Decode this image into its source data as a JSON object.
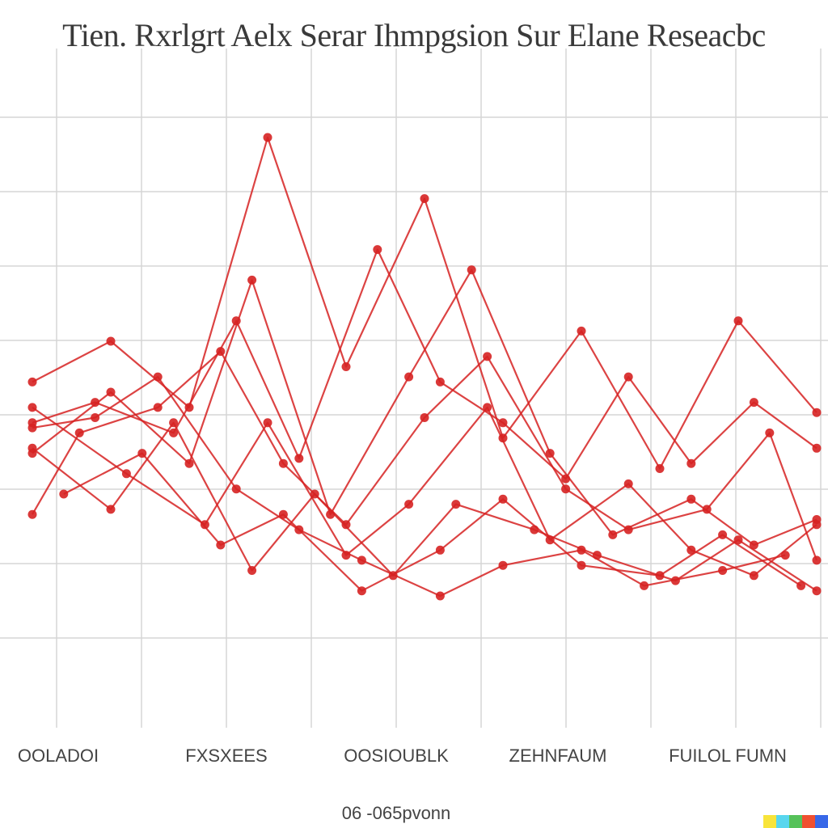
{
  "chart_data": {
    "type": "line",
    "title": "Tien. Rxrlgrt Aelx Serar Ihmpgsion Sur Elane Reseacbc",
    "categories": [
      "OOLADOI",
      "FXSXEES",
      "OOSIOUBLK",
      "ZEHNFAUM",
      "FUILOL FUMN"
    ],
    "xlabel": "06 -065pvonn",
    "ylabel": "",
    "ylim": [
      0,
      100
    ],
    "grid": true,
    "series_color": "#d62222",
    "series": [
      {
        "x": [
          0.0,
          0.5,
          1.0,
          1.5,
          2.0,
          2.5,
          3.0,
          3.5,
          4.0,
          4.5,
          5.0
        ],
        "values": [
          52,
          60,
          47,
          100,
          55,
          88,
          41,
          62,
          35,
          64,
          46
        ]
      },
      {
        "x": [
          0.0,
          0.4,
          0.9,
          1.3,
          1.7,
          2.2,
          2.6,
          3.0,
          3.4,
          3.8,
          4.2,
          4.6,
          5.0
        ],
        "values": [
          44,
          48,
          42,
          64,
          37,
          78,
          52,
          44,
          33,
          53,
          36,
          48,
          39
        ]
      },
      {
        "x": [
          0.0,
          0.5,
          1.0,
          1.4,
          1.9,
          2.4,
          2.8,
          3.3,
          3.7,
          4.2,
          4.6,
          5.0
        ],
        "values": [
          38,
          50,
          36,
          72,
          26,
          53,
          74,
          38,
          22,
          29,
          20,
          25
        ]
      },
      {
        "x": [
          0.0,
          0.3,
          0.8,
          1.2,
          1.6,
          2.0,
          2.5,
          2.9,
          3.4,
          3.8,
          4.3,
          4.7,
          5.0
        ],
        "values": [
          26,
          42,
          47,
          58,
          36,
          24,
          45,
          57,
          31,
          23,
          27,
          42,
          17
        ]
      },
      {
        "x": [
          0.0,
          0.6,
          1.1,
          1.5,
          2.0,
          2.4,
          2.9,
          3.3,
          3.8,
          4.2,
          4.6,
          5.0
        ],
        "values": [
          47,
          34,
          24,
          44,
          18,
          28,
          47,
          21,
          32,
          19,
          14,
          24
        ]
      },
      {
        "x": [
          0.0,
          0.5,
          0.9,
          1.4,
          1.8,
          2.3,
          2.7,
          3.2,
          3.6,
          4.1,
          4.5,
          5.0
        ],
        "values": [
          39,
          27,
          44,
          15,
          30,
          14,
          28,
          23,
          18,
          13,
          21,
          11
        ]
      },
      {
        "x": [
          0.0,
          0.4,
          0.8,
          1.3,
          1.7,
          2.1,
          2.6,
          3.0,
          3.5,
          3.9,
          4.4,
          4.8
        ],
        "values": [
          43,
          45,
          53,
          31,
          23,
          17,
          10,
          16,
          19,
          12,
          15,
          18
        ]
      },
      {
        "x": [
          0.2,
          0.7,
          1.2,
          1.6,
          2.1,
          2.6,
          3.0,
          3.5,
          4.0,
          4.4,
          4.9
        ],
        "values": [
          30,
          38,
          20,
          26,
          11,
          19,
          29,
          16,
          14,
          22,
          12
        ]
      }
    ]
  }
}
